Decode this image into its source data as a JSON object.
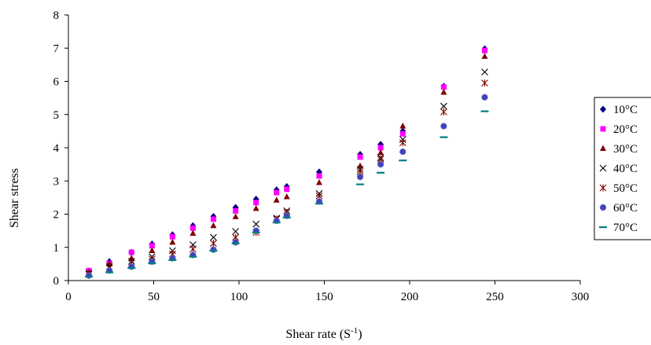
{
  "chart_data": {
    "type": "scatter",
    "title": "",
    "xlabel": "Shear rate (S",
    "xlabel_sup": "-1",
    "xlabel_suffix": ")",
    "ylabel": "Shear stress",
    "xlim": [
      0,
      300
    ],
    "ylim": [
      0,
      8
    ],
    "xticks": [
      0,
      50,
      100,
      150,
      200,
      250,
      300
    ],
    "yticks": [
      0,
      1,
      2,
      3,
      4,
      5,
      6,
      7,
      8
    ],
    "grid": false,
    "legend_position": "right",
    "series": [
      {
        "name": "10°C",
        "marker": "diamond",
        "color": "#000080",
        "x": [
          12,
          24,
          37,
          49,
          61,
          73,
          85,
          98,
          110,
          122,
          128,
          147,
          171,
          183,
          196,
          220,
          244
        ],
        "y": [
          0.28,
          0.57,
          0.85,
          1.1,
          1.38,
          1.65,
          1.93,
          2.2,
          2.45,
          2.73,
          2.83,
          3.27,
          3.8,
          4.1,
          4.5,
          5.85,
          6.98
        ]
      },
      {
        "name": "20°C",
        "marker": "square",
        "color": "#FF00FF",
        "x": [
          12,
          24,
          37,
          49,
          61,
          73,
          85,
          98,
          110,
          122,
          128,
          147,
          171,
          183,
          196,
          220,
          244
        ],
        "y": [
          0.3,
          0.52,
          0.85,
          1.05,
          1.32,
          1.58,
          1.85,
          2.1,
          2.35,
          2.65,
          2.75,
          3.15,
          3.72,
          4.0,
          4.42,
          5.83,
          6.93
        ]
      },
      {
        "name": "30°C",
        "marker": "triangle",
        "color": "#800000",
        "x": [
          12,
          24,
          37,
          49,
          61,
          73,
          85,
          98,
          110,
          122,
          128,
          147,
          171,
          183,
          196,
          220,
          244
        ],
        "y": [
          0.25,
          0.5,
          0.67,
          0.9,
          1.15,
          1.42,
          1.65,
          1.92,
          2.17,
          2.42,
          2.52,
          2.95,
          3.45,
          3.85,
          4.65,
          5.67,
          6.75
        ]
      },
      {
        "name": "40°C",
        "marker": "x",
        "color": "#000000",
        "x": [
          12,
          24,
          37,
          49,
          61,
          73,
          85,
          98,
          110,
          122,
          128,
          147,
          171,
          183,
          196,
          220,
          244
        ],
        "y": [
          0.22,
          0.42,
          0.58,
          0.72,
          0.9,
          1.08,
          1.3,
          1.48,
          1.7,
          1.88,
          2.1,
          2.62,
          3.35,
          3.7,
          4.25,
          5.25,
          6.28
        ]
      },
      {
        "name": "50°C",
        "marker": "asterisk",
        "color": "#800000",
        "x": [
          12,
          24,
          37,
          49,
          61,
          73,
          85,
          98,
          110,
          122,
          128,
          147,
          171,
          183,
          196,
          220,
          244
        ],
        "y": [
          0.2,
          0.38,
          0.52,
          0.65,
          0.8,
          0.95,
          1.12,
          1.3,
          1.45,
          1.85,
          2.05,
          2.55,
          3.28,
          3.65,
          4.15,
          5.08,
          5.95
        ]
      },
      {
        "name": "60°C",
        "marker": "circle",
        "color": "#4040C0",
        "x": [
          12,
          24,
          37,
          49,
          61,
          73,
          85,
          98,
          110,
          122,
          128,
          147,
          171,
          183,
          196,
          220,
          244
        ],
        "y": [
          0.15,
          0.3,
          0.42,
          0.57,
          0.67,
          0.77,
          0.93,
          1.15,
          1.5,
          1.8,
          1.95,
          2.38,
          3.12,
          3.5,
          3.88,
          4.65,
          5.52
        ]
      },
      {
        "name": "70°C",
        "marker": "dash",
        "color": "#008080",
        "x": [
          12,
          24,
          37,
          49,
          61,
          73,
          85,
          98,
          110,
          122,
          128,
          147,
          171,
          183,
          196,
          220,
          244
        ],
        "y": [
          0.12,
          0.25,
          0.38,
          0.52,
          0.62,
          0.72,
          0.9,
          1.12,
          1.45,
          1.75,
          1.9,
          2.32,
          2.9,
          3.25,
          3.62,
          4.32,
          5.1
        ]
      }
    ]
  }
}
